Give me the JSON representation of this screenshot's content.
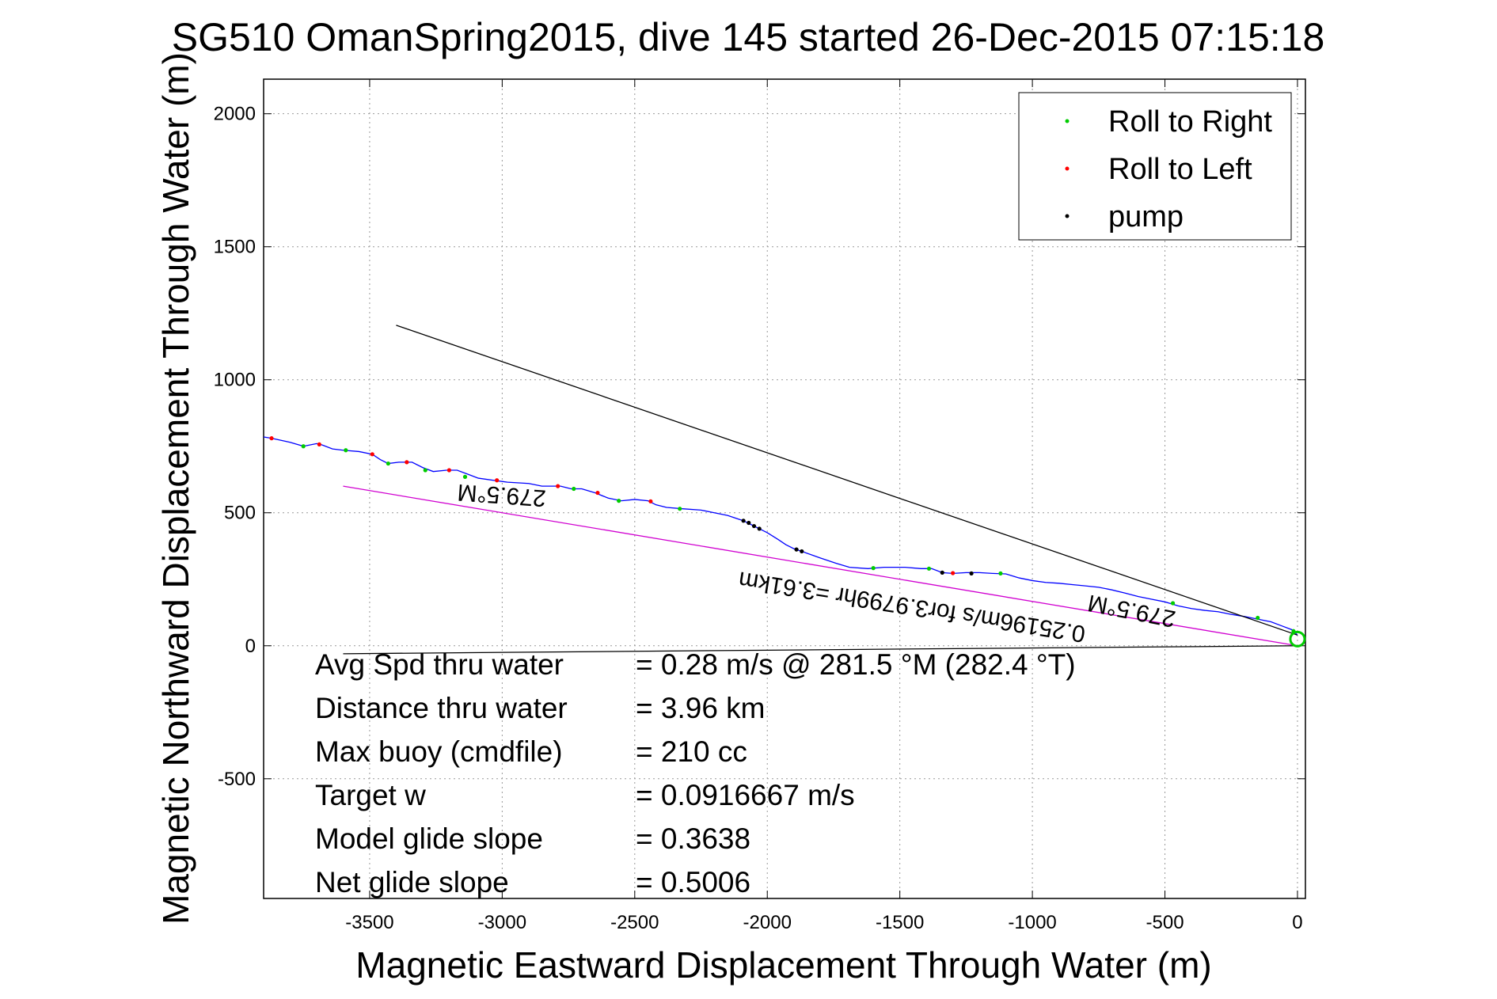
{
  "chart_data": {
    "type": "line",
    "title": "SG510 OmanSpring2015, dive 145 started 26-Dec-2015 07:15:18",
    "xlabel": "Magnetic Eastward Displacement Through Water (m)",
    "ylabel": "Magnetic Northward Displacement Through Water (m)",
    "xlim": [
      -3900,
      30
    ],
    "ylim": [
      -950,
      2130
    ],
    "x_ticks": [
      -3500,
      -3000,
      -2500,
      -2000,
      -1500,
      -1000,
      -500,
      0
    ],
    "x_tick_labels": [
      "-3500",
      "-3000",
      "-2500",
      "-2000",
      "-1500",
      "-1000",
      "-500",
      "0"
    ],
    "y_ticks": [
      -500,
      0,
      500,
      1000,
      1500,
      2000
    ],
    "y_tick_labels": [
      "-500",
      "0",
      "500",
      "1000",
      "1500",
      "2000"
    ],
    "grid": true,
    "legend_position": "top-right",
    "legend": [
      {
        "label": "Roll to Right",
        "color": "#00cc00"
      },
      {
        "label": "Roll to Left",
        "color": "#ff0000"
      },
      {
        "label": "pump",
        "color": "#000000"
      }
    ],
    "series": [
      {
        "name": "track",
        "color": "#0000ff",
        "points": [
          [
            -3900,
            785
          ],
          [
            -3870,
            780
          ],
          [
            -3800,
            765
          ],
          [
            -3750,
            750
          ],
          [
            -3700,
            760
          ],
          [
            -3680,
            755
          ],
          [
            -3640,
            740
          ],
          [
            -3600,
            735
          ],
          [
            -3540,
            730
          ],
          [
            -3490,
            720
          ],
          [
            -3460,
            700
          ],
          [
            -3430,
            685
          ],
          [
            -3390,
            690
          ],
          [
            -3340,
            690
          ],
          [
            -3300,
            670
          ],
          [
            -3260,
            655
          ],
          [
            -3210,
            660
          ],
          [
            -3170,
            660
          ],
          [
            -3130,
            645
          ],
          [
            -3090,
            630
          ],
          [
            -3020,
            620
          ],
          [
            -2980,
            615
          ],
          [
            -2900,
            610
          ],
          [
            -2850,
            600
          ],
          [
            -2780,
            600
          ],
          [
            -2740,
            590
          ],
          [
            -2700,
            590
          ],
          [
            -2650,
            575
          ],
          [
            -2600,
            555
          ],
          [
            -2550,
            545
          ],
          [
            -2500,
            550
          ],
          [
            -2450,
            545
          ],
          [
            -2420,
            530
          ],
          [
            -2380,
            520
          ],
          [
            -2320,
            515
          ],
          [
            -2250,
            510
          ],
          [
            -2200,
            500
          ],
          [
            -2150,
            490
          ],
          [
            -2090,
            470
          ],
          [
            -2060,
            455
          ],
          [
            -2030,
            440
          ],
          [
            -2000,
            425
          ],
          [
            -1960,
            400
          ],
          [
            -1930,
            380
          ],
          [
            -1900,
            365
          ],
          [
            -1870,
            355
          ],
          [
            -1800,
            330
          ],
          [
            -1740,
            310
          ],
          [
            -1690,
            295
          ],
          [
            -1620,
            290
          ],
          [
            -1560,
            295
          ],
          [
            -1480,
            295
          ],
          [
            -1420,
            290
          ],
          [
            -1380,
            290
          ],
          [
            -1340,
            275
          ],
          [
            -1300,
            272
          ],
          [
            -1250,
            275
          ],
          [
            -1200,
            275
          ],
          [
            -1150,
            272
          ],
          [
            -1100,
            270
          ],
          [
            -1050,
            255
          ],
          [
            -1000,
            245
          ],
          [
            -950,
            238
          ],
          [
            -900,
            235
          ],
          [
            -850,
            230
          ],
          [
            -800,
            225
          ],
          [
            -750,
            220
          ],
          [
            -700,
            210
          ],
          [
            -650,
            198
          ],
          [
            -600,
            185
          ],
          [
            -550,
            175
          ],
          [
            -500,
            165
          ],
          [
            -450,
            150
          ],
          [
            -400,
            140
          ],
          [
            -350,
            133
          ],
          [
            -300,
            128
          ],
          [
            -250,
            118
          ],
          [
            -200,
            110
          ],
          [
            -150,
            100
          ],
          [
            -100,
            90
          ],
          [
            -60,
            75
          ],
          [
            -20,
            60
          ],
          [
            0,
            40
          ]
        ]
      },
      {
        "name": "predicted-course-line",
        "color": "#000000",
        "points": [
          [
            -3400,
            1205
          ],
          [
            0,
            40
          ]
        ]
      },
      {
        "name": "current-set-line",
        "color": "#d000d0",
        "points": [
          [
            -3600,
            600
          ],
          [
            0,
            0
          ]
        ]
      },
      {
        "name": "zero-line",
        "color": "#000000",
        "points": [
          [
            -3600,
            -30
          ],
          [
            0,
            0
          ]
        ]
      }
    ],
    "roll_right_points": [
      [
        -3750,
        750
      ],
      [
        -3590,
        735
      ],
      [
        -3430,
        685
      ],
      [
        -3290,
        660
      ],
      [
        -3140,
        635
      ],
      [
        -2730,
        590
      ],
      [
        -2560,
        545
      ],
      [
        -2330,
        515
      ],
      [
        -1600,
        292
      ],
      [
        -1390,
        290
      ],
      [
        -1120,
        272
      ],
      [
        -470,
        160
      ],
      [
        -150,
        105
      ],
      [
        -15,
        55
      ]
    ],
    "roll_left_points": [
      [
        -3870,
        780
      ],
      [
        -3690,
        757
      ],
      [
        -3490,
        720
      ],
      [
        -3360,
        690
      ],
      [
        -3200,
        660
      ],
      [
        -3020,
        622
      ],
      [
        -2790,
        600
      ],
      [
        -2640,
        575
      ],
      [
        -2440,
        543
      ],
      [
        -1300,
        273
      ]
    ],
    "pump_points": [
      [
        -2090,
        470
      ],
      [
        -2070,
        462
      ],
      [
        -2050,
        450
      ],
      [
        -2030,
        440
      ],
      [
        -1890,
        362
      ],
      [
        -1870,
        355
      ],
      [
        -1340,
        275
      ],
      [
        -1230,
        272
      ]
    ],
    "annotations": [
      {
        "text": "279.5°M",
        "x": -3000,
        "y": 595,
        "rotation": 184
      },
      {
        "text": "279.5°M",
        "x": -620,
        "y": 160,
        "rotation": 191
      },
      {
        "text": "0.25196m/s for3.9799hr =3.61km",
        "x": -1450,
        "y": 175,
        "rotation": 189
      }
    ],
    "stats": [
      {
        "label": "Avg Spd thru water",
        "value": "=  0.28 m/s @ 281.5 °M (282.4 °T)"
      },
      {
        "label": "Distance thru water",
        "value": "=  3.96 km"
      },
      {
        "label": "Max buoy (cmdfile)",
        "value": "= 210 cc"
      },
      {
        "label": "Target w",
        "value": "= 0.0916667 m/s"
      },
      {
        "label": "Model glide slope",
        "value": "= 0.3638"
      },
      {
        "label": "Net glide slope",
        "value": "= 0.5006"
      }
    ],
    "start_marker": {
      "x": 0,
      "y": 25,
      "color": "#00cc00"
    }
  }
}
